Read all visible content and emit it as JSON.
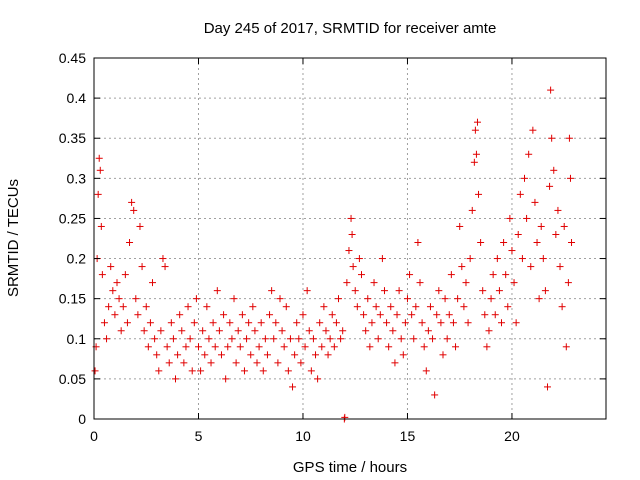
{
  "chart_data": {
    "type": "scatter",
    "title": "Day 245 of 2017, SRMTID for receiver amte",
    "xlabel": "GPS time / hours",
    "ylabel": "SRMTID / TECUs",
    "xlim": [
      0,
      24.5
    ],
    "ylim": [
      0,
      0.45
    ],
    "x_ticks": [
      0,
      5,
      10,
      15,
      20
    ],
    "y_ticks": [
      0,
      0.05,
      0.1,
      0.15,
      0.2,
      0.25,
      0.3,
      0.35,
      0.4,
      0.45
    ],
    "x_tick_labels": [
      "0",
      "5",
      "10",
      "15",
      "20"
    ],
    "y_tick_labels": [
      "0",
      "0.05",
      "0.1",
      "0.15",
      "0.2",
      "0.25",
      "0.3",
      "0.35",
      "0.4",
      "0.45"
    ],
    "grid": true,
    "marker": "+",
    "color": "#e00000",
    "series": [
      {
        "name": "SRMTID",
        "points": [
          [
            0.05,
            0.06
          ],
          [
            0.1,
            0.09
          ],
          [
            0.15,
            0.2
          ],
          [
            0.2,
            0.28
          ],
          [
            0.25,
            0.325
          ],
          [
            0.3,
            0.31
          ],
          [
            0.35,
            0.24
          ],
          [
            0.4,
            0.18
          ],
          [
            0.5,
            0.12
          ],
          [
            0.6,
            0.1
          ],
          [
            0.7,
            0.14
          ],
          [
            0.8,
            0.19
          ],
          [
            0.9,
            0.16
          ],
          [
            1.0,
            0.13
          ],
          [
            1.1,
            0.17
          ],
          [
            1.2,
            0.15
          ],
          [
            1.3,
            0.11
          ],
          [
            1.4,
            0.14
          ],
          [
            1.5,
            0.18
          ],
          [
            1.6,
            0.12
          ],
          [
            1.7,
            0.22
          ],
          [
            1.8,
            0.27
          ],
          [
            1.9,
            0.26
          ],
          [
            2.0,
            0.15
          ],
          [
            2.1,
            0.13
          ],
          [
            2.2,
            0.24
          ],
          [
            2.3,
            0.19
          ],
          [
            2.4,
            0.11
          ],
          [
            2.5,
            0.14
          ],
          [
            2.6,
            0.09
          ],
          [
            2.7,
            0.12
          ],
          [
            2.8,
            0.17
          ],
          [
            2.9,
            0.1
          ],
          [
            3.0,
            0.08
          ],
          [
            3.1,
            0.06
          ],
          [
            3.2,
            0.11
          ],
          [
            3.3,
            0.2
          ],
          [
            3.4,
            0.19
          ],
          [
            3.5,
            0.09
          ],
          [
            3.6,
            0.07
          ],
          [
            3.7,
            0.12
          ],
          [
            3.8,
            0.1
          ],
          [
            3.9,
            0.05
          ],
          [
            4.0,
            0.08
          ],
          [
            4.1,
            0.13
          ],
          [
            4.2,
            0.11
          ],
          [
            4.3,
            0.07
          ],
          [
            4.4,
            0.09
          ],
          [
            4.5,
            0.14
          ],
          [
            4.6,
            0.1
          ],
          [
            4.7,
            0.06
          ],
          [
            4.8,
            0.12
          ],
          [
            4.9,
            0.15
          ],
          [
            5.0,
            0.09
          ],
          [
            5.1,
            0.06
          ],
          [
            5.2,
            0.11
          ],
          [
            5.3,
            0.08
          ],
          [
            5.4,
            0.14
          ],
          [
            5.5,
            0.1
          ],
          [
            5.6,
            0.07
          ],
          [
            5.7,
            0.12
          ],
          [
            5.8,
            0.09
          ],
          [
            5.9,
            0.16
          ],
          [
            6.0,
            0.11
          ],
          [
            6.1,
            0.08
          ],
          [
            6.2,
            0.13
          ],
          [
            6.3,
            0.05
          ],
          [
            6.4,
            0.09
          ],
          [
            6.5,
            0.12
          ],
          [
            6.6,
            0.1
          ],
          [
            6.7,
            0.15
          ],
          [
            6.8,
            0.07
          ],
          [
            6.9,
            0.11
          ],
          [
            7.0,
            0.09
          ],
          [
            7.1,
            0.13
          ],
          [
            7.2,
            0.06
          ],
          [
            7.3,
            0.1
          ],
          [
            7.4,
            0.12
          ],
          [
            7.5,
            0.08
          ],
          [
            7.6,
            0.14
          ],
          [
            7.7,
            0.11
          ],
          [
            7.8,
            0.07
          ],
          [
            7.9,
            0.09
          ],
          [
            8.0,
            0.12
          ],
          [
            8.1,
            0.06
          ],
          [
            8.2,
            0.1
          ],
          [
            8.3,
            0.08
          ],
          [
            8.4,
            0.13
          ],
          [
            8.5,
            0.16
          ],
          [
            8.6,
            0.1
          ],
          [
            8.7,
            0.12
          ],
          [
            8.8,
            0.07
          ],
          [
            8.9,
            0.15
          ],
          [
            9.0,
            0.11
          ],
          [
            9.1,
            0.09
          ],
          [
            9.2,
            0.14
          ],
          [
            9.3,
            0.06
          ],
          [
            9.4,
            0.1
          ],
          [
            9.5,
            0.04
          ],
          [
            9.6,
            0.08
          ],
          [
            9.7,
            0.12
          ],
          [
            9.8,
            0.1
          ],
          [
            9.9,
            0.07
          ],
          [
            10.0,
            0.13
          ],
          [
            10.1,
            0.09
          ],
          [
            10.2,
            0.16
          ],
          [
            10.3,
            0.11
          ],
          [
            10.4,
            0.06
          ],
          [
            10.5,
            0.1
          ],
          [
            10.6,
            0.08
          ],
          [
            10.7,
            0.05
          ],
          [
            10.8,
            0.12
          ],
          [
            10.9,
            0.09
          ],
          [
            11.0,
            0.14
          ],
          [
            11.1,
            0.11
          ],
          [
            11.2,
            0.08
          ],
          [
            11.3,
            0.1
          ],
          [
            11.4,
            0.13
          ],
          [
            11.5,
            0.09
          ],
          [
            11.6,
            0.12
          ],
          [
            11.7,
            0.15
          ],
          [
            11.8,
            0.1
          ],
          [
            11.9,
            0.11
          ],
          [
            11.98,
            0.0
          ],
          [
            12.0,
            0.002
          ],
          [
            12.1,
            0.17
          ],
          [
            12.2,
            0.21
          ],
          [
            12.3,
            0.25
          ],
          [
            12.35,
            0.23
          ],
          [
            12.4,
            0.19
          ],
          [
            12.5,
            0.16
          ],
          [
            12.6,
            0.14
          ],
          [
            12.7,
            0.2
          ],
          [
            12.8,
            0.18
          ],
          [
            12.9,
            0.13
          ],
          [
            13.0,
            0.11
          ],
          [
            13.1,
            0.15
          ],
          [
            13.2,
            0.09
          ],
          [
            13.3,
            0.12
          ],
          [
            13.4,
            0.17
          ],
          [
            13.5,
            0.14
          ],
          [
            13.6,
            0.1
          ],
          [
            13.7,
            0.13
          ],
          [
            13.8,
            0.2
          ],
          [
            13.9,
            0.16
          ],
          [
            14.0,
            0.12
          ],
          [
            14.1,
            0.09
          ],
          [
            14.2,
            0.14
          ],
          [
            14.3,
            0.11
          ],
          [
            14.4,
            0.07
          ],
          [
            14.5,
            0.13
          ],
          [
            14.6,
            0.16
          ],
          [
            14.7,
            0.1
          ],
          [
            14.8,
            0.08
          ],
          [
            14.9,
            0.12
          ],
          [
            15.0,
            0.15
          ],
          [
            15.1,
            0.18
          ],
          [
            15.2,
            0.13
          ],
          [
            15.3,
            0.1
          ],
          [
            15.4,
            0.14
          ],
          [
            15.5,
            0.22
          ],
          [
            15.6,
            0.17
          ],
          [
            15.7,
            0.12
          ],
          [
            15.8,
            0.09
          ],
          [
            15.9,
            0.06
          ],
          [
            16.0,
            0.11
          ],
          [
            16.1,
            0.14
          ],
          [
            16.2,
            0.1
          ],
          [
            16.3,
            0.03
          ],
          [
            16.4,
            0.13
          ],
          [
            16.5,
            0.16
          ],
          [
            16.6,
            0.12
          ],
          [
            16.7,
            0.08
          ],
          [
            16.8,
            0.15
          ],
          [
            16.9,
            0.1
          ],
          [
            17.0,
            0.13
          ],
          [
            17.1,
            0.18
          ],
          [
            17.2,
            0.12
          ],
          [
            17.3,
            0.09
          ],
          [
            17.4,
            0.15
          ],
          [
            17.5,
            0.24
          ],
          [
            17.6,
            0.19
          ],
          [
            17.7,
            0.14
          ],
          [
            17.8,
            0.17
          ],
          [
            17.9,
            0.12
          ],
          [
            18.0,
            0.2
          ],
          [
            18.1,
            0.26
          ],
          [
            18.2,
            0.32
          ],
          [
            18.25,
            0.36
          ],
          [
            18.3,
            0.33
          ],
          [
            18.35,
            0.37
          ],
          [
            18.4,
            0.28
          ],
          [
            18.5,
            0.22
          ],
          [
            18.6,
            0.16
          ],
          [
            18.7,
            0.13
          ],
          [
            18.8,
            0.09
          ],
          [
            18.9,
            0.11
          ],
          [
            19.0,
            0.15
          ],
          [
            19.1,
            0.18
          ],
          [
            19.2,
            0.13
          ],
          [
            19.3,
            0.2
          ],
          [
            19.4,
            0.16
          ],
          [
            19.5,
            0.12
          ],
          [
            19.6,
            0.22
          ],
          [
            19.7,
            0.18
          ],
          [
            19.8,
            0.14
          ],
          [
            19.9,
            0.25
          ],
          [
            20.0,
            0.21
          ],
          [
            20.1,
            0.17
          ],
          [
            20.2,
            0.12
          ],
          [
            20.3,
            0.23
          ],
          [
            20.4,
            0.28
          ],
          [
            20.5,
            0.2
          ],
          [
            20.6,
            0.3
          ],
          [
            20.7,
            0.25
          ],
          [
            20.8,
            0.33
          ],
          [
            20.9,
            0.19
          ],
          [
            21.0,
            0.36
          ],
          [
            21.1,
            0.27
          ],
          [
            21.2,
            0.22
          ],
          [
            21.3,
            0.15
          ],
          [
            21.4,
            0.24
          ],
          [
            21.5,
            0.2
          ],
          [
            21.6,
            0.16
          ],
          [
            21.7,
            0.04
          ],
          [
            21.8,
            0.29
          ],
          [
            21.85,
            0.41
          ],
          [
            21.9,
            0.35
          ],
          [
            22.0,
            0.31
          ],
          [
            22.1,
            0.23
          ],
          [
            22.2,
            0.26
          ],
          [
            22.3,
            0.19
          ],
          [
            22.4,
            0.14
          ],
          [
            22.5,
            0.24
          ],
          [
            22.6,
            0.09
          ],
          [
            22.7,
            0.17
          ],
          [
            22.75,
            0.35
          ],
          [
            22.8,
            0.3
          ],
          [
            22.85,
            0.22
          ]
        ]
      }
    ]
  }
}
